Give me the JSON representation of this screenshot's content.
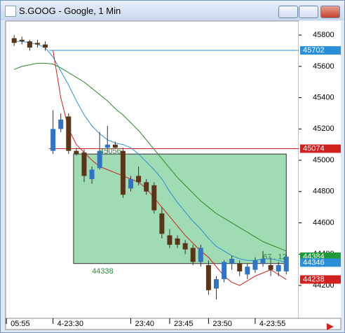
{
  "window": {
    "title": "S.GOOG - Google, 1 Min"
  },
  "chart_data": {
    "type": "candlestick",
    "ylim": [
      43990,
      45890
    ],
    "yticks": [
      44200,
      44400,
      44600,
      44800,
      45000,
      45200,
      45400,
      45600,
      45800
    ],
    "xlim": [
      -1.1,
      36.6
    ],
    "xticks": [
      {
        "value": -1,
        "label": "05:55"
      },
      {
        "value": 5,
        "label": "4-23:30"
      },
      {
        "value": 15,
        "label": "23:40"
      },
      {
        "value": 20,
        "label": "23:45"
      },
      {
        "value": 25,
        "label": "23:50"
      },
      {
        "value": 31,
        "label": "4-23:55"
      }
    ],
    "up_color": "#2f74c8",
    "down_color": "#5b3518",
    "open": [
      45780,
      45770,
      45760,
      45750,
      45740,
      45060,
      45200,
      45280,
      45060,
      45050,
      44880,
      44950,
      45080,
      45100,
      45060,
      44820,
      44900,
      44860,
      44840,
      44660,
      44520,
      44500,
      44470,
      44440,
      44350,
      44330,
      44180,
      44240,
      44340,
      44340,
      44270,
      44300,
      44340,
      44330,
      44290,
      44290
    ],
    "high": [
      45800,
      45790,
      45770,
      45770,
      45760,
      45320,
      45300,
      45300,
      45080,
      45070,
      44960,
      45180,
      45220,
      45120,
      45080,
      44900,
      44960,
      44880,
      44860,
      44700,
      44560,
      44520,
      44490,
      44460,
      44460,
      44360,
      44260,
      44360,
      44390,
      44360,
      44340,
      44380,
      44420,
      44380,
      44350,
      44420
    ],
    "low": [
      45730,
      45740,
      45700,
      45720,
      45700,
      45040,
      45180,
      45040,
      45030,
      44860,
      44850,
      44940,
      45050,
      45070,
      44760,
      44800,
      44840,
      44780,
      44660,
      44500,
      44440,
      44440,
      44400,
      44330,
      44320,
      44140,
      44110,
      44220,
      44300,
      44260,
      44240,
      44280,
      44320,
      44260,
      44260,
      44270
    ],
    "close": [
      45750,
      45760,
      45720,
      45740,
      45720,
      45200,
      45260,
      45060,
      45040,
      44900,
      44940,
      45060,
      45100,
      45080,
      44780,
      44880,
      44860,
      44800,
      44680,
      44530,
      44460,
      44460,
      44430,
      44350,
      44440,
      44170,
      44240,
      44350,
      44370,
      44290,
      44320,
      44360,
      44370,
      44300,
      44330,
      44384
    ],
    "series": [
      {
        "color": "#2a8fd8",
        "values": [
          45760,
          45760,
          45750,
          45740,
          45720,
          45660,
          45570,
          45480,
          45380,
          45290,
          45220,
          45170,
          45130,
          45110,
          45100,
          45080,
          45040,
          44990,
          44940,
          44880,
          44800,
          44730,
          44670,
          44610,
          44560,
          44500,
          44450,
          44420,
          44390,
          44370,
          44360,
          44360,
          44370,
          44370,
          44360,
          44346
        ]
      },
      {
        "color": "#2a8a2a",
        "values": [
          45580,
          45600,
          45610,
          45620,
          45620,
          45615,
          45590,
          45560,
          45530,
          45500,
          45460,
          45420,
          45380,
          45330,
          45290,
          45240,
          45190,
          45130,
          45070,
          45010,
          44950,
          44890,
          44840,
          44790,
          44740,
          44700,
          44660,
          44630,
          44600,
          44570,
          44540,
          44510,
          44480,
          44460,
          44440,
          44420
        ]
      },
      {
        "color": "#d02020",
        "values": [
          null,
          null,
          null,
          null,
          null,
          45700,
          45400,
          45200,
          45100,
          45050,
          45000,
          44960,
          44940,
          44920,
          44900,
          44880,
          44860,
          44820,
          44760,
          44700,
          44640,
          44580,
          44520,
          44470,
          44420,
          44380,
          44320,
          44260,
          44220,
          44200,
          44230,
          44260,
          44280,
          44300,
          44270,
          44238
        ]
      }
    ],
    "levels": [
      {
        "value": 45702,
        "color": "#2a8fd8"
      },
      {
        "value": 45074,
        "color": "#d02020"
      }
    ],
    "zone": {
      "from": 8,
      "to": 35,
      "top": 45040,
      "bottom": 44340,
      "color": "#7fcf9a"
    },
    "price_tags": [
      {
        "value": 45702,
        "color": "#2a8fd8"
      },
      {
        "value": 45074,
        "color": "#d02020"
      },
      {
        "value": 44384,
        "color": "#1f9a3a"
      },
      {
        "value": 44346,
        "color": "#2a8fd8"
      },
      {
        "value": 44238,
        "color": "#d02020"
      }
    ],
    "annotations": [
      {
        "text": "45056",
        "x": 11,
        "y": 45056
      },
      {
        "text": "44338",
        "x": 10,
        "y": 44290
      },
      {
        "text": "67 . 12",
        "x": 32,
        "y": 44380
      }
    ]
  }
}
